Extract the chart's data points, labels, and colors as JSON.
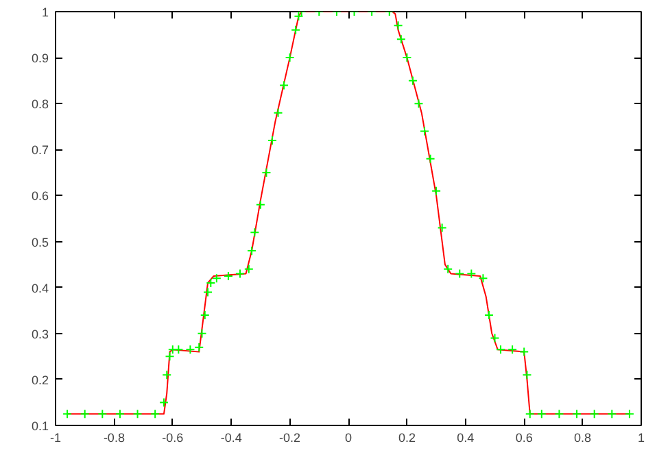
{
  "chart_data": {
    "type": "line",
    "xlim": [
      -1,
      1
    ],
    "ylim": [
      0.1,
      1
    ],
    "xticks": [
      -1,
      -0.8,
      -0.6,
      -0.4,
      -0.2,
      0,
      0.2,
      0.4,
      0.6,
      0.8,
      1
    ],
    "yticks": [
      0.1,
      0.2,
      0.3,
      0.4,
      0.5,
      0.6,
      0.7,
      0.8,
      0.9,
      1
    ],
    "grid": false,
    "series": [
      {
        "color": "#ff0000",
        "marker": "none",
        "line_style": "solid",
        "x": [
          -0.96,
          -0.63,
          -0.62,
          -0.61,
          -0.6,
          -0.51,
          -0.5,
          -0.48,
          -0.46,
          -0.35,
          -0.33,
          -0.3,
          -0.25,
          -0.2,
          -0.17,
          -0.16,
          0.15,
          0.16,
          0.17,
          0.2,
          0.25,
          0.3,
          0.33,
          0.35,
          0.45,
          0.47,
          0.49,
          0.51,
          0.6,
          0.61,
          0.62,
          0.96
        ],
        "values": [
          0.125,
          0.125,
          0.17,
          0.26,
          0.265,
          0.26,
          0.31,
          0.41,
          0.425,
          0.43,
          0.48,
          0.59,
          0.76,
          0.9,
          0.99,
          1,
          1,
          0.995,
          0.96,
          0.9,
          0.78,
          0.6,
          0.45,
          0.43,
          0.425,
          0.38,
          0.3,
          0.265,
          0.26,
          0.2,
          0.125,
          0.125
        ]
      },
      {
        "type": "scatter",
        "color": "#00ff00",
        "marker": "cross",
        "x": [
          -0.96,
          -0.9,
          -0.84,
          -0.78,
          -0.72,
          -0.66,
          -0.63,
          -0.62,
          -0.61,
          -0.6,
          -0.58,
          -0.54,
          -0.51,
          -0.5,
          -0.49,
          -0.48,
          -0.47,
          -0.45,
          -0.41,
          -0.37,
          -0.34,
          -0.33,
          -0.32,
          -0.3,
          -0.28,
          -0.26,
          -0.24,
          -0.22,
          -0.2,
          -0.18,
          -0.17,
          -0.16,
          -0.1,
          -0.04,
          0.02,
          0.08,
          0.14,
          0.17,
          0.18,
          0.2,
          0.22,
          0.24,
          0.26,
          0.28,
          0.3,
          0.32,
          0.34,
          0.38,
          0.42,
          0.46,
          0.48,
          0.5,
          0.52,
          0.56,
          0.6,
          0.61,
          0.62,
          0.66,
          0.72,
          0.78,
          0.84,
          0.9,
          0.96
        ],
        "values": [
          0.125,
          0.125,
          0.125,
          0.125,
          0.125,
          0.125,
          0.15,
          0.21,
          0.25,
          0.265,
          0.265,
          0.265,
          0.27,
          0.3,
          0.34,
          0.39,
          0.41,
          0.42,
          0.425,
          0.43,
          0.44,
          0.48,
          0.52,
          0.58,
          0.65,
          0.72,
          0.78,
          0.84,
          0.9,
          0.96,
          0.99,
          1,
          1,
          1,
          1,
          1,
          1,
          0.97,
          0.94,
          0.9,
          0.85,
          0.8,
          0.74,
          0.68,
          0.61,
          0.53,
          0.44,
          0.43,
          0.43,
          0.42,
          0.34,
          0.29,
          0.265,
          0.265,
          0.26,
          0.21,
          0.125,
          0.125,
          0.125,
          0.125,
          0.125,
          0.125,
          0.125
        ]
      }
    ]
  }
}
